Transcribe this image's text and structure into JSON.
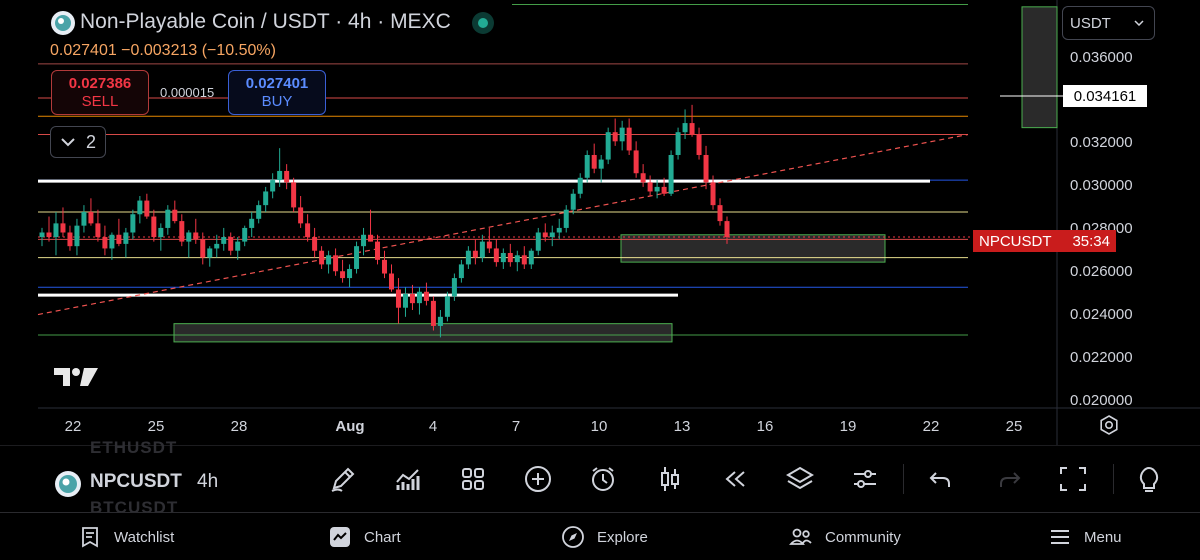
{
  "header": {
    "title": "Non-Playable Coin / USDT · 4h · MEXC",
    "ohlc": "0.027401 −0.003213 (−10.50%)"
  },
  "trade": {
    "sell_price": "0.027386",
    "sell_label": "SELL",
    "spread": "0.000015",
    "buy_price": "0.027401",
    "buy_label": "BUY"
  },
  "indicators": {
    "count": "2"
  },
  "currency": {
    "selected": "USDT"
  },
  "price_label": {
    "symbol": "NPCUSDT",
    "countdown": "35:34"
  },
  "crosshair": {
    "price": "0.034161"
  },
  "toolbar": {
    "symbol": "NPCUSDT",
    "interval": "4h",
    "ghost_top": "ETHUSDT",
    "ghost_bottom": "BTCUSDT"
  },
  "nav": {
    "watchlist": "Watchlist",
    "chart": "Chart",
    "explore": "Explore",
    "community": "Community",
    "menu": "Menu"
  },
  "colors": {
    "up": "#22ab94",
    "down": "#f23645",
    "accent": "#2962ff"
  },
  "chart_data": {
    "type": "candlestick",
    "y_ticks": [
      "0.036000",
      "0.032000",
      "0.030000",
      "0.028000",
      "0.026000",
      "0.024000",
      "0.022000",
      "0.020000"
    ],
    "x_ticks": [
      "22",
      "25",
      "28",
      "Aug",
      "4",
      "7",
      "10",
      "13",
      "16",
      "19",
      "22",
      "25"
    ],
    "ylim": [
      0.0199,
      0.0378
    ],
    "current_price": 0.027401,
    "horizontal_lines": [
      {
        "price": 0.0376,
        "color": "#4caf50"
      },
      {
        "price": 0.035,
        "color": "#b2504f"
      },
      {
        "price": 0.0335,
        "color": "#ef5350"
      },
      {
        "price": 0.0327,
        "color": "#ff9800"
      },
      {
        "price": 0.0319,
        "color": "#ef5350"
      },
      {
        "price": 0.0299,
        "color": "#2962ff"
      },
      {
        "price": 0.0285,
        "color": "#fff59d"
      },
      {
        "price": 0.0273,
        "color": "#ef5350"
      },
      {
        "price": 0.0265,
        "color": "#fff59d"
      },
      {
        "price": 0.0252,
        "color": "#2962ff"
      },
      {
        "price": 0.0231,
        "color": "#4caf50"
      }
    ],
    "zones": [
      {
        "from": 0.0375,
        "to": 0.0322
      },
      {
        "from": 0.0275,
        "to": 0.0263
      },
      {
        "from": 0.0236,
        "to": 0.0228
      }
    ],
    "candles": [
      [
        0.0274,
        0.0278,
        0.027,
        0.0276
      ],
      [
        0.0276,
        0.0283,
        0.0272,
        0.0274
      ],
      [
        0.0274,
        0.0285,
        0.0266,
        0.028
      ],
      [
        0.028,
        0.0287,
        0.0274,
        0.0276
      ],
      [
        0.0276,
        0.0279,
        0.0268,
        0.027
      ],
      [
        0.027,
        0.0282,
        0.0266,
        0.0279
      ],
      [
        0.0279,
        0.0288,
        0.0276,
        0.0285
      ],
      [
        0.0285,
        0.0291,
        0.0279,
        0.028
      ],
      [
        0.028,
        0.0286,
        0.0272,
        0.0274
      ],
      [
        0.0274,
        0.0279,
        0.0266,
        0.0269
      ],
      [
        0.0269,
        0.0276,
        0.0264,
        0.0275
      ],
      [
        0.0275,
        0.0282,
        0.027,
        0.0271
      ],
      [
        0.0271,
        0.0278,
        0.0265,
        0.0276
      ],
      [
        0.0276,
        0.0286,
        0.0273,
        0.0284
      ],
      [
        0.0284,
        0.0292,
        0.028,
        0.029
      ],
      [
        0.029,
        0.0293,
        0.0282,
        0.0283
      ],
      [
        0.0283,
        0.0286,
        0.0272,
        0.0274
      ],
      [
        0.0274,
        0.028,
        0.0268,
        0.0278
      ],
      [
        0.0278,
        0.0288,
        0.0275,
        0.0286
      ],
      [
        0.0286,
        0.029,
        0.028,
        0.0281
      ],
      [
        0.0281,
        0.0284,
        0.027,
        0.0272
      ],
      [
        0.0272,
        0.0277,
        0.0265,
        0.0276
      ],
      [
        0.0276,
        0.0282,
        0.0271,
        0.0273
      ],
      [
        0.0273,
        0.0276,
        0.0262,
        0.0265
      ],
      [
        0.0265,
        0.027,
        0.0261,
        0.0269
      ],
      [
        0.0269,
        0.0275,
        0.0265,
        0.0271
      ],
      [
        0.0271,
        0.0278,
        0.0268,
        0.0274
      ],
      [
        0.0274,
        0.0276,
        0.0266,
        0.0268
      ],
      [
        0.0268,
        0.0274,
        0.0264,
        0.0272
      ],
      [
        0.0272,
        0.0279,
        0.027,
        0.0278
      ],
      [
        0.0278,
        0.0285,
        0.0274,
        0.0282
      ],
      [
        0.0282,
        0.029,
        0.028,
        0.0288
      ],
      [
        0.0288,
        0.0296,
        0.0285,
        0.0294
      ],
      [
        0.0294,
        0.0302,
        0.0291,
        0.0299
      ],
      [
        0.0299,
        0.0313,
        0.0296,
        0.0303
      ],
      [
        0.0303,
        0.0306,
        0.0295,
        0.0298
      ],
      [
        0.0298,
        0.03,
        0.0285,
        0.0287
      ],
      [
        0.0287,
        0.0292,
        0.0278,
        0.028
      ],
      [
        0.028,
        0.0284,
        0.0272,
        0.0274
      ],
      [
        0.0274,
        0.0278,
        0.0265,
        0.0268
      ],
      [
        0.0268,
        0.027,
        0.026,
        0.0262
      ],
      [
        0.0262,
        0.0268,
        0.0258,
        0.0266
      ],
      [
        0.0266,
        0.0269,
        0.0257,
        0.0259
      ],
      [
        0.0259,
        0.0264,
        0.0254,
        0.0256
      ],
      [
        0.0256,
        0.0262,
        0.0252,
        0.026
      ],
      [
        0.026,
        0.0272,
        0.0258,
        0.027
      ],
      [
        0.027,
        0.0278,
        0.0266,
        0.0275
      ],
      [
        0.0275,
        0.0286,
        0.0272,
        0.0272
      ],
      [
        0.0272,
        0.0275,
        0.0262,
        0.0264
      ],
      [
        0.0264,
        0.0268,
        0.0256,
        0.0258
      ],
      [
        0.0258,
        0.0262,
        0.025,
        0.0251
      ],
      [
        0.0251,
        0.0256,
        0.0236,
        0.0243
      ],
      [
        0.0243,
        0.0252,
        0.0239,
        0.0249
      ],
      [
        0.0249,
        0.0253,
        0.0242,
        0.0245
      ],
      [
        0.0245,
        0.0252,
        0.024,
        0.025
      ],
      [
        0.025,
        0.0254,
        0.0244,
        0.0246
      ],
      [
        0.0246,
        0.0248,
        0.0233,
        0.0235
      ],
      [
        0.0235,
        0.0242,
        0.023,
        0.0239
      ],
      [
        0.0239,
        0.025,
        0.0237,
        0.0248
      ],
      [
        0.0248,
        0.0258,
        0.0246,
        0.0256
      ],
      [
        0.0256,
        0.0264,
        0.0254,
        0.0262
      ],
      [
        0.0262,
        0.027,
        0.026,
        0.0268
      ],
      [
        0.0268,
        0.0273,
        0.0262,
        0.0265
      ],
      [
        0.0265,
        0.0275,
        0.0263,
        0.0272
      ],
      [
        0.0272,
        0.0278,
        0.0267,
        0.0269
      ],
      [
        0.0269,
        0.0273,
        0.0261,
        0.0263
      ],
      [
        0.0263,
        0.0269,
        0.026,
        0.0267
      ],
      [
        0.0267,
        0.0271,
        0.0261,
        0.0263
      ],
      [
        0.0263,
        0.0268,
        0.0259,
        0.0266
      ],
      [
        0.0266,
        0.027,
        0.026,
        0.0262
      ],
      [
        0.0262,
        0.0269,
        0.026,
        0.0268
      ],
      [
        0.0268,
        0.0278,
        0.0266,
        0.0276
      ],
      [
        0.0276,
        0.028,
        0.0272,
        0.0274
      ],
      [
        0.0274,
        0.0279,
        0.027,
        0.0276
      ],
      [
        0.0276,
        0.0282,
        0.0273,
        0.0278
      ],
      [
        0.0278,
        0.0288,
        0.0276,
        0.0286
      ],
      [
        0.0286,
        0.0295,
        0.0284,
        0.0293
      ],
      [
        0.0293,
        0.0302,
        0.0291,
        0.03
      ],
      [
        0.03,
        0.0312,
        0.0298,
        0.031
      ],
      [
        0.031,
        0.0315,
        0.0302,
        0.0304
      ],
      [
        0.0304,
        0.031,
        0.0298,
        0.0308
      ],
      [
        0.0308,
        0.0322,
        0.0306,
        0.032
      ],
      [
        0.032,
        0.0326,
        0.0314,
        0.0316
      ],
      [
        0.0316,
        0.0325,
        0.0312,
        0.0322
      ],
      [
        0.0322,
        0.0326,
        0.031,
        0.0312
      ],
      [
        0.0312,
        0.0316,
        0.03,
        0.0302
      ],
      [
        0.0302,
        0.0306,
        0.0296,
        0.0298
      ],
      [
        0.0298,
        0.0301,
        0.0292,
        0.0294
      ],
      [
        0.0294,
        0.0299,
        0.0291,
        0.0296
      ],
      [
        0.0296,
        0.03,
        0.0292,
        0.0293
      ],
      [
        0.0293,
        0.0312,
        0.0292,
        0.031
      ],
      [
        0.031,
        0.0322,
        0.0308,
        0.032
      ],
      [
        0.032,
        0.033,
        0.0317,
        0.0324
      ],
      [
        0.0324,
        0.0332,
        0.0318,
        0.0319
      ],
      [
        0.0319,
        0.0322,
        0.0308,
        0.031
      ],
      [
        0.031,
        0.0314,
        0.0295,
        0.0298
      ],
      [
        0.0298,
        0.0301,
        0.0286,
        0.0288
      ],
      [
        0.0288,
        0.0291,
        0.0279,
        0.0281
      ],
      [
        0.0281,
        0.0283,
        0.0271,
        0.0274
      ]
    ]
  }
}
